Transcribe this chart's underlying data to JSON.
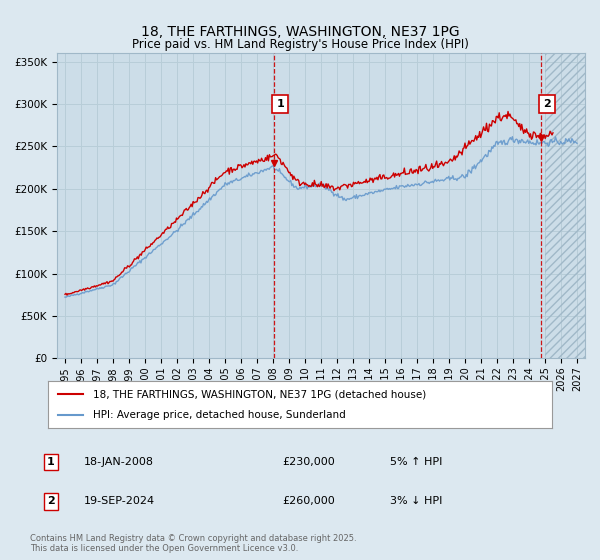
{
  "title": "18, THE FARTHINGS, WASHINGTON, NE37 1PG",
  "subtitle": "Price paid vs. HM Land Registry's House Price Index (HPI)",
  "ylim": [
    0,
    360000
  ],
  "xlim_start": 1994.5,
  "xlim_end": 2027.5,
  "yticks": [
    0,
    50000,
    100000,
    150000,
    200000,
    250000,
    300000,
    350000
  ],
  "ytick_labels": [
    "£0",
    "£50K",
    "£100K",
    "£150K",
    "£200K",
    "£250K",
    "£300K",
    "£350K"
  ],
  "xticks": [
    1995,
    1996,
    1997,
    1998,
    1999,
    2000,
    2001,
    2002,
    2003,
    2004,
    2005,
    2006,
    2007,
    2008,
    2009,
    2010,
    2011,
    2012,
    2013,
    2014,
    2015,
    2016,
    2017,
    2018,
    2019,
    2020,
    2021,
    2022,
    2023,
    2024,
    2025,
    2026,
    2027
  ],
  "sale_color": "#cc0000",
  "hpi_color": "#6699cc",
  "vline_color": "#cc0000",
  "marker1_x": 2008.05,
  "marker1_y": 230000,
  "marker1_label": "1",
  "marker1_date": "18-JAN-2008",
  "marker1_price": "£230,000",
  "marker1_hpi": "5% ↑ HPI",
  "marker2_x": 2024.72,
  "marker2_y": 260000,
  "marker2_label": "2",
  "marker2_date": "19-SEP-2024",
  "marker2_price": "£260,000",
  "marker2_hpi": "3% ↓ HPI",
  "legend_label_sale": "18, THE FARTHINGS, WASHINGTON, NE37 1PG (detached house)",
  "legend_label_hpi": "HPI: Average price, detached house, Sunderland",
  "footnote": "Contains HM Land Registry data © Crown copyright and database right 2025.\nThis data is licensed under the Open Government Licence v3.0.",
  "fig_bg_color": "#dce8f0",
  "plot_bg_color": "#ccdde8",
  "shaded_right_x": 2025.0,
  "grid_color": "#b8cdd8"
}
